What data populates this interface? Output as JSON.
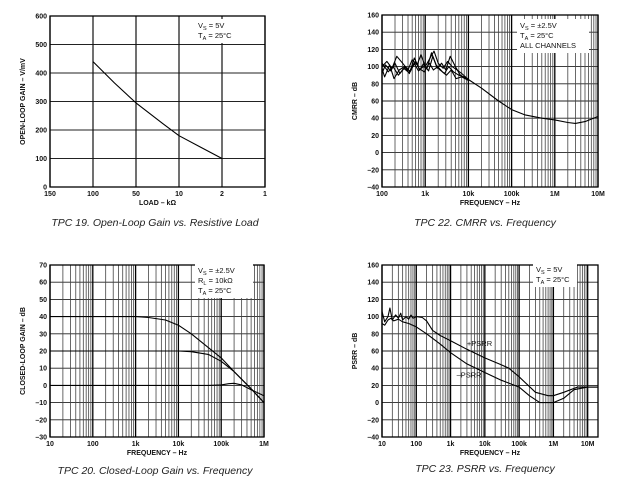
{
  "chart_data": [
    {
      "id": "tpc19",
      "type": "line",
      "title": "TPC 19.  Open-Loop Gain vs. Resistive Load",
      "xlabel": "LOAD – kΩ",
      "ylabel": "OPEN-LOOP GAIN – V/mV",
      "xscale": "category",
      "x_ticks": [
        "150",
        "100",
        "50",
        "10",
        "2",
        "1"
      ],
      "ylim": [
        0,
        600
      ],
      "y_ticks": [
        "0",
        "100",
        "200",
        "300",
        "400",
        "500",
        "600"
      ],
      "grid": true,
      "annotation": [
        {
          "main": "V",
          "sub": "S",
          "rest": " = 5V"
        },
        {
          "main": "T",
          "sub": "A",
          "rest": " = 25°C"
        }
      ],
      "series": [
        {
          "name": "gain",
          "x": [
            100,
            75,
            50,
            25,
            10,
            6,
            2
          ],
          "y": [
            440,
            365,
            295,
            222,
            180,
            140,
            100
          ]
        }
      ]
    },
    {
      "id": "tpc22",
      "type": "line",
      "title": "TPC 22.  CMRR vs. Frequency",
      "xlabel": "FREQUENCY – Hz",
      "ylabel": "CMRR – dB",
      "xscale": "log",
      "xlim": [
        100,
        10000000
      ],
      "x_ticks": [
        {
          "v": 100,
          "label": "100"
        },
        {
          "v": 1000,
          "label": "1k"
        },
        {
          "v": 10000,
          "label": "10k"
        },
        {
          "v": 100000,
          "label": "100k"
        },
        {
          "v": 1000000,
          "label": "1M"
        },
        {
          "v": 10000000,
          "label": "10M"
        }
      ],
      "ylim": [
        -40,
        160
      ],
      "y_ticks": [
        "-40",
        "-20",
        "0",
        "20",
        "40",
        "60",
        "80",
        "100",
        "120",
        "140",
        "160"
      ],
      "grid": true,
      "annotation": [
        {
          "main": "V",
          "sub": "S",
          "rest": " = ±2.5V"
        },
        {
          "main": "T",
          "sub": "A",
          "rest": " = 25°C"
        },
        {
          "main": "ALL CHANNELS",
          "sub": "",
          "rest": ""
        }
      ],
      "series": [
        {
          "name": "channel 1",
          "x": [
            100,
            130,
            170,
            220,
            300,
            400,
            500,
            650,
            800,
            1000,
            1300,
            1600,
            2000,
            2600,
            3300,
            4200,
            5500,
            7000,
            10000,
            20000,
            50000,
            100000,
            200000,
            500000,
            1000000,
            2000000,
            3000000,
            5000000,
            10000000
          ],
          "y": [
            100,
            106,
            98,
            112,
            104,
            96,
            108,
            102,
            114,
            100,
            110,
            118,
            104,
            98,
            106,
            100,
            96,
            92,
            85,
            75,
            60,
            50,
            44,
            40,
            38,
            35,
            34,
            36,
            42
          ]
        },
        {
          "name": "channel 2",
          "x": [
            100,
            120,
            160,
            200,
            260,
            350,
            450,
            600,
            750,
            900,
            1200,
            1500,
            1900,
            2400,
            3000,
            3800,
            5000,
            6500,
            10000
          ],
          "y": [
            92,
            102,
            95,
            104,
            92,
            100,
            94,
            106,
            96,
            103,
            95,
            112,
            98,
            104,
            96,
            112,
            100,
            90,
            84
          ]
        },
        {
          "name": "channel 3",
          "x": [
            100,
            140,
            180,
            240,
            320,
            420,
            550,
            700,
            900,
            1100,
            1400,
            1800,
            2200,
            2800,
            3500,
            4500,
            6000,
            8000,
            10000
          ],
          "y": [
            104,
            94,
            100,
            90,
            98,
            93,
            104,
            95,
            100,
            98,
            116,
            102,
            96,
            92,
            100,
            94,
            90,
            88,
            85
          ]
        },
        {
          "name": "channel 4",
          "x": [
            100,
            115,
            150,
            190,
            250,
            330,
            430,
            560,
            720,
            950,
            1250,
            1550,
            1950,
            2500,
            3100,
            4000,
            5200,
            7000,
            10000
          ],
          "y": [
            98,
            88,
            102,
            86,
            96,
            100,
            92,
            110,
            98,
            94,
            104,
            96,
            100,
            94,
            90,
            96,
            86,
            88,
            84
          ]
        }
      ]
    },
    {
      "id": "tpc20",
      "type": "line",
      "title": "TPC 20.  Closed-Loop Gain vs. Frequency",
      "xlabel": "FREQUENCY – Hz",
      "ylabel": "CLOSED-LOOP GAIN – dB",
      "xscale": "log",
      "xlim": [
        10,
        1000000
      ],
      "x_ticks": [
        {
          "v": 10,
          "label": "10"
        },
        {
          "v": 100,
          "label": "100"
        },
        {
          "v": 1000,
          "label": "1k"
        },
        {
          "v": 10000,
          "label": "10k"
        },
        {
          "v": 100000,
          "label": "100k"
        },
        {
          "v": 1000000,
          "label": "1M"
        }
      ],
      "ylim": [
        -30,
        70
      ],
      "y_ticks": [
        "-30",
        "-20",
        "-10",
        "0",
        "10",
        "20",
        "30",
        "40",
        "50",
        "60",
        "70"
      ],
      "grid": true,
      "annotation": [
        {
          "main": "V",
          "sub": "S",
          "rest": " = ±2.5V"
        },
        {
          "main": "R",
          "sub": "L",
          "rest": " = 10kΩ"
        },
        {
          "main": "T",
          "sub": "A",
          "rest": " = 25°C"
        }
      ],
      "series": [
        {
          "name": "gain 40dB",
          "x": [
            10,
            1000,
            2000,
            5000,
            10000,
            20000,
            50000,
            100000,
            200000,
            500000,
            1000000
          ],
          "y": [
            40,
            40,
            39.5,
            38,
            35,
            30,
            22,
            16,
            8,
            -2,
            -10
          ]
        },
        {
          "name": "gain 20dB",
          "x": [
            10,
            10000,
            20000,
            50000,
            100000,
            200000,
            500000,
            1000000
          ],
          "y": [
            20,
            20,
            19.6,
            18,
            14,
            8,
            -2,
            -10
          ]
        },
        {
          "name": "gain 0dB",
          "x": [
            10,
            50000,
            100000,
            150000,
            200000,
            300000,
            500000,
            1000000
          ],
          "y": [
            0,
            0,
            0.3,
            1,
            1.2,
            0.3,
            -2.5,
            -6
          ]
        }
      ]
    },
    {
      "id": "tpc23",
      "type": "line",
      "title": "TPC 23.  PSRR vs. Frequency",
      "xlabel": "FREQUENCY – Hz",
      "ylabel": "PSRR – dB",
      "xscale": "log",
      "xlim": [
        10,
        20000000
      ],
      "x_ticks": [
        {
          "v": 10,
          "label": "10"
        },
        {
          "v": 100,
          "label": "100"
        },
        {
          "v": 1000,
          "label": "1k"
        },
        {
          "v": 10000,
          "label": "10k"
        },
        {
          "v": 100000,
          "label": "100k"
        },
        {
          "v": 1000000,
          "label": "1M"
        },
        {
          "v": 10000000,
          "label": "10M"
        }
      ],
      "ylim": [
        -40,
        160
      ],
      "y_ticks": [
        "-40",
        "-20",
        "0",
        "20",
        "40",
        "60",
        "80",
        "100",
        "120",
        "140",
        "160"
      ],
      "grid": true,
      "annotation": [
        {
          "main": "V",
          "sub": "S",
          "rest": " = 5V"
        },
        {
          "main": "T",
          "sub": "A",
          "rest": " = 25°C"
        }
      ],
      "series": [
        {
          "name": "+PSRR",
          "label": "+PSRR",
          "label_at": [
            3000,
            66
          ],
          "x": [
            10,
            12,
            15,
            17,
            20,
            25,
            30,
            35,
            40,
            50,
            60,
            70,
            80,
            100,
            150,
            200,
            300,
            500,
            1000,
            3000,
            10000,
            30000,
            50000,
            100000,
            300000,
            700000,
            1000000,
            2000000,
            5000000,
            10000000,
            20000000
          ],
          "y": [
            106,
            94,
            100,
            110,
            96,
            102,
            98,
            104,
            96,
            100,
            97,
            102,
            98,
            100,
            99,
            95,
            84,
            78,
            72,
            62,
            52,
            44,
            40,
            30,
            12,
            8,
            8,
            12,
            18,
            18,
            18
          ]
        },
        {
          "name": "-PSRR",
          "label": "–PSRR",
          "label_at": [
            1500,
            29
          ],
          "x": [
            10,
            12,
            15,
            18,
            22,
            30,
            40,
            60,
            100,
            200,
            500,
            1000,
            3000,
            10000,
            30000,
            100000,
            200000,
            400000,
            1000000,
            2000000,
            4000000,
            10000000,
            20000000
          ],
          "y": [
            92,
            90,
            96,
            98,
            95,
            97,
            94,
            92,
            88,
            80,
            68,
            58,
            45,
            35,
            26,
            18,
            8,
            0,
            0,
            5,
            15,
            18,
            18
          ]
        }
      ]
    }
  ]
}
